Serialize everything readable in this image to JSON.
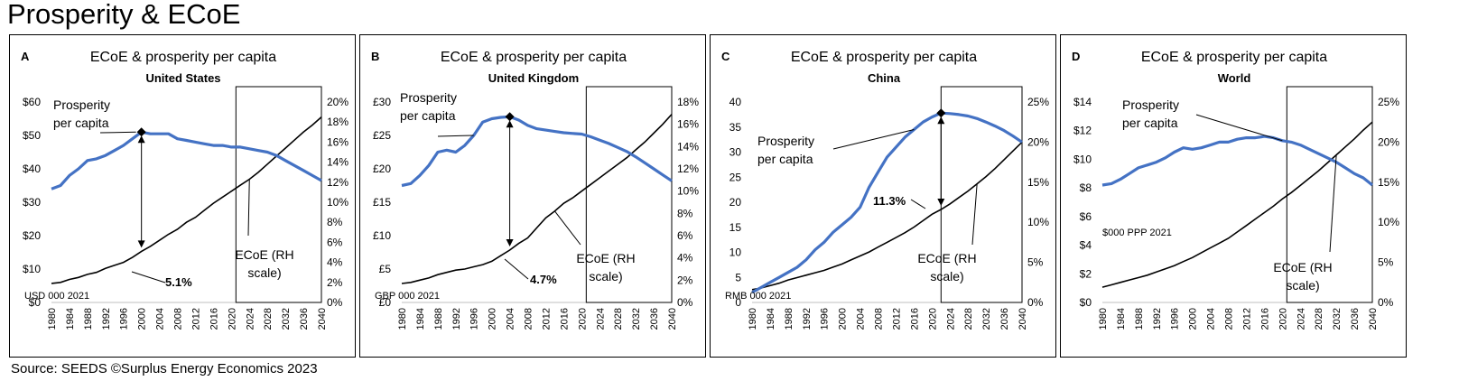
{
  "page": {
    "title": "Prosperity & ECoE",
    "source": "Source: SEEDS  ©Surplus Energy Economics 2023"
  },
  "colors": {
    "prosperity": "#4472c4",
    "ecoe": "#000000"
  },
  "chart_data": [
    {
      "panel_letter": "A",
      "type": "line",
      "title": "ECoE & prosperity per capita",
      "subtitle": "United States",
      "unit_note": "USD 000 2021",
      "x_ticks": [
        1980,
        1984,
        1988,
        1992,
        1996,
        2000,
        2004,
        2008,
        2012,
        2016,
        2020,
        2024,
        2028,
        2032,
        2036,
        2040
      ],
      "x_ticks_text": [
        "1980",
        "1984",
        "1988",
        "1992",
        "1996",
        "2000",
        "2004",
        "2008",
        "2012",
        "2016",
        "2020",
        "2024",
        "2028",
        "2032",
        "2036",
        "2040"
      ],
      "left_axis": {
        "min": 0,
        "max": 60,
        "ticks": [
          0,
          10,
          20,
          30,
          40,
          50,
          60
        ],
        "tick_labels": [
          "$0",
          "$10",
          "$20",
          "$30",
          "$40",
          "$50",
          "$60"
        ]
      },
      "right_axis": {
        "min": 0,
        "max": 20,
        "ticks": [
          0,
          2,
          4,
          6,
          8,
          10,
          12,
          14,
          16,
          18,
          20
        ],
        "tick_labels": [
          "0%",
          "2%",
          "4%",
          "6%",
          "8%",
          "10%",
          "12%",
          "14%",
          "16%",
          "18%",
          "20%"
        ]
      },
      "series": [
        {
          "name": "Prosperity per capita",
          "axis": "left",
          "x": [
            1980,
            1982,
            1984,
            1986,
            1988,
            1990,
            1992,
            1994,
            1996,
            1998,
            2000,
            2002,
            2004,
            2006,
            2008,
            2010,
            2012,
            2014,
            2016,
            2018,
            2020,
            2022,
            2024,
            2026,
            2028,
            2030,
            2032,
            2034,
            2036,
            2038,
            2040
          ],
          "y": [
            34,
            35,
            38,
            40,
            42.5,
            43,
            44,
            45.5,
            47,
            49,
            51,
            50.5,
            50.5,
            50.5,
            49,
            48.5,
            48,
            47.5,
            47,
            47,
            46.5,
            46.5,
            46,
            45.5,
            45,
            44,
            42.5,
            41,
            39.5,
            38,
            36.5
          ]
        },
        {
          "name": "ECoE (RH scale)",
          "axis": "right",
          "x": [
            1980,
            1982,
            1984,
            1986,
            1988,
            1990,
            1992,
            1994,
            1996,
            1998,
            2000,
            2002,
            2004,
            2006,
            2008,
            2010,
            2012,
            2014,
            2016,
            2018,
            2020,
            2022,
            2024,
            2026,
            2028,
            2030,
            2032,
            2034,
            2036,
            2038,
            2040
          ],
          "y": [
            1.9,
            2.0,
            2.3,
            2.5,
            2.8,
            3.0,
            3.4,
            3.7,
            4.0,
            4.5,
            5.1,
            5.6,
            6.2,
            6.8,
            7.3,
            8.0,
            8.5,
            9.2,
            9.9,
            10.5,
            11.1,
            11.7,
            12.3,
            13.0,
            13.8,
            14.6,
            15.4,
            16.2,
            17.0,
            17.7,
            18.5
          ]
        }
      ],
      "annotations": [
        {
          "text": "5.1%",
          "bold": true
        },
        {
          "text": "Prosperity",
          "bold": false
        },
        {
          "text": "per capita",
          "bold": false
        },
        {
          "text": "ECoE (RH",
          "bold": false
        },
        {
          "text": "scale)",
          "bold": false
        }
      ],
      "forecast_box_from": 2021
    },
    {
      "panel_letter": "B",
      "type": "line",
      "title": "ECoE & prosperity per capita",
      "subtitle": "United Kingdom",
      "unit_note": "GBP 000 2021",
      "x_ticks": [
        1980,
        1984,
        1988,
        1992,
        1996,
        2000,
        2004,
        2008,
        2012,
        2016,
        2020,
        2024,
        2028,
        2032,
        2036,
        2040
      ],
      "x_ticks_text": [
        "1980",
        "1984",
        "1988",
        "1992",
        "1996",
        "2000",
        "2004",
        "2008",
        "2012",
        "2016",
        "2020",
        "2024",
        "2028",
        "2032",
        "2036",
        "2040"
      ],
      "left_axis": {
        "min": 0,
        "max": 30,
        "ticks": [
          0,
          5,
          10,
          15,
          20,
          25,
          30
        ],
        "tick_labels": [
          "£0",
          "£5",
          "£10",
          "£15",
          "£20",
          "£25",
          "£30"
        ]
      },
      "right_axis": {
        "min": 0,
        "max": 18,
        "ticks": [
          0,
          2,
          4,
          6,
          8,
          10,
          12,
          14,
          16,
          18
        ],
        "tick_labels": [
          "0%",
          "2%",
          "4%",
          "6%",
          "8%",
          "10%",
          "12%",
          "14%",
          "16%",
          "18%"
        ]
      },
      "series": [
        {
          "name": "Prosperity per capita",
          "axis": "left",
          "x": [
            1980,
            1982,
            1984,
            1986,
            1988,
            1990,
            1992,
            1994,
            1996,
            1998,
            2000,
            2002,
            2004,
            2006,
            2008,
            2010,
            2012,
            2014,
            2016,
            2018,
            2020,
            2022,
            2024,
            2026,
            2028,
            2030,
            2032,
            2034,
            2036,
            2038,
            2040
          ],
          "y": [
            17.5,
            17.8,
            19,
            20.5,
            22.5,
            22.8,
            22.5,
            23.5,
            25,
            27,
            27.5,
            27.7,
            27.8,
            27.3,
            26.5,
            26,
            25.8,
            25.6,
            25.4,
            25.3,
            25.2,
            24.8,
            24.3,
            23.8,
            23.2,
            22.6,
            21.8,
            20.9,
            20,
            19.1,
            18.2
          ]
        },
        {
          "name": "ECoE (RH scale)",
          "axis": "right",
          "x": [
            1980,
            1982,
            1984,
            1986,
            1988,
            1990,
            1992,
            1994,
            1996,
            1998,
            2000,
            2002,
            2004,
            2006,
            2008,
            2010,
            2012,
            2014,
            2016,
            2018,
            2020,
            2022,
            2024,
            2026,
            2028,
            2030,
            2032,
            2034,
            2036,
            2038,
            2040
          ],
          "y": [
            1.7,
            1.8,
            2.0,
            2.2,
            2.5,
            2.7,
            2.9,
            3.0,
            3.2,
            3.4,
            3.7,
            4.2,
            4.7,
            5.3,
            5.8,
            6.7,
            7.6,
            8.2,
            8.9,
            9.4,
            10.0,
            10.6,
            11.2,
            11.8,
            12.4,
            13.0,
            13.7,
            14.4,
            15.2,
            16.0,
            16.9
          ]
        }
      ],
      "annotations": [
        {
          "text": "4.7%",
          "bold": true
        },
        {
          "text": "Prosperity",
          "bold": false
        },
        {
          "text": "per capita",
          "bold": false
        },
        {
          "text": "ECoE (RH",
          "bold": false
        },
        {
          "text": "scale)",
          "bold": false
        }
      ],
      "forecast_box_from": 2021
    },
    {
      "panel_letter": "C",
      "type": "line",
      "title": "ECoE & prosperity per capita",
      "subtitle": "China",
      "unit_note": "RMB 000 2021",
      "x_ticks": [
        1980,
        1984,
        1988,
        1992,
        1996,
        2000,
        2004,
        2008,
        2012,
        2016,
        2020,
        2024,
        2028,
        2032,
        2036,
        2040
      ],
      "x_ticks_text": [
        "1980",
        "1984",
        "1988",
        "1992",
        "1996",
        "2000",
        "2004",
        "2008",
        "2012",
        "2016",
        "2020",
        "2024",
        "2028",
        "2032",
        "2036",
        "2040"
      ],
      "left_axis": {
        "min": 0,
        "max": 40,
        "ticks": [
          0,
          5,
          10,
          15,
          20,
          25,
          30,
          35,
          40
        ],
        "tick_labels": [
          "0",
          "5",
          "10",
          "15",
          "20",
          "25",
          "30",
          "35",
          "40"
        ]
      },
      "right_axis": {
        "min": 0,
        "max": 25,
        "ticks": [
          0,
          5,
          10,
          15,
          20,
          25
        ],
        "tick_labels": [
          "0%",
          "5%",
          "10%",
          "15%",
          "20%",
          "25%"
        ]
      },
      "series": [
        {
          "name": "Prosperity per capita",
          "axis": "left",
          "x": [
            1980,
            1982,
            1984,
            1986,
            1988,
            1990,
            1992,
            1994,
            1996,
            1998,
            2000,
            2002,
            2004,
            2006,
            2008,
            2010,
            2012,
            2014,
            2016,
            2018,
            2020,
            2022,
            2024,
            2026,
            2028,
            2030,
            2032,
            2034,
            2036,
            2038,
            2040
          ],
          "y": [
            2,
            3,
            4,
            5,
            6,
            7,
            8.5,
            10.5,
            12,
            14,
            15.5,
            17,
            19,
            23,
            26,
            29,
            31,
            33,
            34.5,
            36,
            37,
            37.8,
            37.7,
            37.5,
            37.2,
            36.7,
            36,
            35.2,
            34.3,
            33.2,
            32
          ]
        },
        {
          "name": "ECoE (RH scale)",
          "axis": "right",
          "x": [
            1980,
            1982,
            1984,
            1986,
            1988,
            1990,
            1992,
            1994,
            1996,
            1998,
            2000,
            2002,
            2004,
            2006,
            2008,
            2010,
            2012,
            2014,
            2016,
            2018,
            2020,
            2022,
            2024,
            2026,
            2028,
            2030,
            2032,
            2034,
            2036,
            2038,
            2040
          ],
          "y": [
            1.6,
            1.8,
            2.1,
            2.4,
            2.8,
            3.1,
            3.4,
            3.7,
            4.0,
            4.4,
            4.8,
            5.3,
            5.8,
            6.3,
            6.9,
            7.5,
            8.1,
            8.7,
            9.4,
            10.2,
            11.0,
            11.6,
            12.3,
            13.1,
            13.9,
            14.8,
            15.7,
            16.7,
            17.8,
            18.9,
            20.0
          ]
        }
      ],
      "annotations": [
        {
          "text": "11.3%",
          "bold": true
        },
        {
          "text": "Prosperity",
          "bold": false
        },
        {
          "text": "per capita",
          "bold": false
        },
        {
          "text": "ECoE (RH",
          "bold": false
        },
        {
          "text": "scale)",
          "bold": false
        }
      ],
      "forecast_box_from": 2022
    },
    {
      "panel_letter": "D",
      "type": "line",
      "title": "ECoE & prosperity per capita",
      "subtitle": "World",
      "unit_note": "$000 PPP 2021",
      "x_ticks": [
        1980,
        1984,
        1988,
        1992,
        1996,
        2000,
        2004,
        2008,
        2012,
        2016,
        2020,
        2024,
        2028,
        2032,
        2036,
        2040
      ],
      "x_ticks_text": [
        "1980",
        "1984",
        "1988",
        "1992",
        "1996",
        "2000",
        "2004",
        "2008",
        "2012",
        "2016",
        "2020",
        "2024",
        "2028",
        "2032",
        "2036",
        "2040"
      ],
      "left_axis": {
        "min": 0,
        "max": 14,
        "ticks": [
          0,
          2,
          4,
          6,
          8,
          10,
          12,
          14
        ],
        "tick_labels": [
          "$0",
          "$2",
          "$4",
          "$6",
          "$8",
          "$10",
          "$12",
          "$14"
        ]
      },
      "right_axis": {
        "min": 0,
        "max": 25,
        "ticks": [
          0,
          5,
          10,
          15,
          20,
          25
        ],
        "tick_labels": [
          "0%",
          "5%",
          "10%",
          "15%",
          "20%",
          "25%"
        ]
      },
      "series": [
        {
          "name": "Prosperity per capita",
          "axis": "left",
          "x": [
            1980,
            1982,
            1984,
            1986,
            1988,
            1990,
            1992,
            1994,
            1996,
            1998,
            2000,
            2002,
            2004,
            2006,
            2008,
            2010,
            2012,
            2014,
            2016,
            2018,
            2020,
            2022,
            2024,
            2026,
            2028,
            2030,
            2032,
            2034,
            2036,
            2038,
            2040
          ],
          "y": [
            8.2,
            8.3,
            8.6,
            9.0,
            9.4,
            9.6,
            9.8,
            10.1,
            10.5,
            10.8,
            10.7,
            10.8,
            11.0,
            11.2,
            11.2,
            11.4,
            11.5,
            11.5,
            11.6,
            11.5,
            11.3,
            11.2,
            11.0,
            10.7,
            10.4,
            10.1,
            9.8,
            9.4,
            9.0,
            8.7,
            8.2
          ]
        },
        {
          "name": "ECoE (RH scale)",
          "axis": "right",
          "x": [
            1980,
            1982,
            1984,
            1986,
            1988,
            1990,
            1992,
            1994,
            1996,
            1998,
            2000,
            2002,
            2004,
            2006,
            2008,
            2010,
            2012,
            2014,
            2016,
            2018,
            2020,
            2022,
            2024,
            2026,
            2028,
            2030,
            2032,
            2034,
            2036,
            2038,
            2040
          ],
          "y": [
            1.9,
            2.2,
            2.5,
            2.8,
            3.1,
            3.4,
            3.8,
            4.2,
            4.6,
            5.1,
            5.6,
            6.2,
            6.8,
            7.4,
            8.0,
            8.8,
            9.6,
            10.4,
            11.2,
            12.0,
            12.9,
            13.7,
            14.6,
            15.5,
            16.4,
            17.4,
            18.4,
            19.4,
            20.4,
            21.5,
            22.5
          ]
        }
      ],
      "annotations": [
        {
          "text": "Prosperity",
          "bold": false
        },
        {
          "text": "per capita",
          "bold": false
        },
        {
          "text": "ECoE (RH",
          "bold": false
        },
        {
          "text": "scale)",
          "bold": false
        }
      ],
      "forecast_box_from": 2021
    }
  ]
}
